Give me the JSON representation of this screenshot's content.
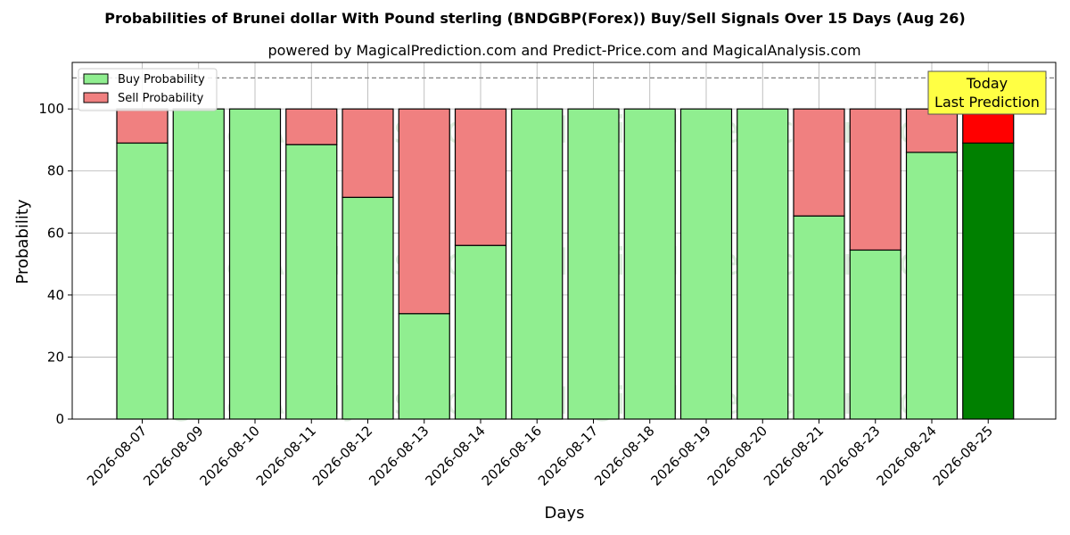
{
  "chart_data": {
    "type": "bar",
    "stacked": true,
    "title": "Probabilities of Brunei dollar With Pound sterling (BNDGBP(Forex)) Buy/Sell Signals Over 15 Days (Aug 26)",
    "subtitle": "powered by MagicalPrediction.com and Predict-Price.com and MagicalAnalysis.com",
    "xlabel": "Days",
    "ylabel": "Probability",
    "ylim": [
      0,
      115
    ],
    "yticks": [
      0,
      20,
      40,
      60,
      80,
      100
    ],
    "reference_line": 110,
    "grid": true,
    "legend_position": "top-left",
    "categories": [
      "2026-08-07",
      "2026-08-09",
      "2026-08-10",
      "2026-08-11",
      "2026-08-12",
      "2026-08-13",
      "2026-08-14",
      "2026-08-16",
      "2026-08-17",
      "2026-08-18",
      "2026-08-19",
      "2026-08-20",
      "2026-08-21",
      "2026-08-23",
      "2026-08-24",
      "2026-08-25"
    ],
    "series": [
      {
        "name": "Buy Probability",
        "color": "#90ee90",
        "highlight_color": "#008000",
        "values": [
          89,
          100,
          100,
          88.5,
          71.5,
          34,
          56,
          100,
          100,
          100,
          100,
          100,
          65.5,
          54.5,
          86,
          89
        ]
      },
      {
        "name": "Sell Probability",
        "color": "#f08080",
        "highlight_color": "#ff0000",
        "values": [
          11,
          0,
          0,
          11.5,
          28.5,
          66,
          44,
          0,
          0,
          0,
          0,
          0,
          34.5,
          45.5,
          14,
          11
        ]
      }
    ],
    "highlight_index": 15,
    "annotation": {
      "line1": "Today",
      "line2": "Last Prediction",
      "color": "#ffff44"
    },
    "watermarks": [
      "MagicalAnalysis.com",
      "MagicalPrediction.com"
    ]
  }
}
